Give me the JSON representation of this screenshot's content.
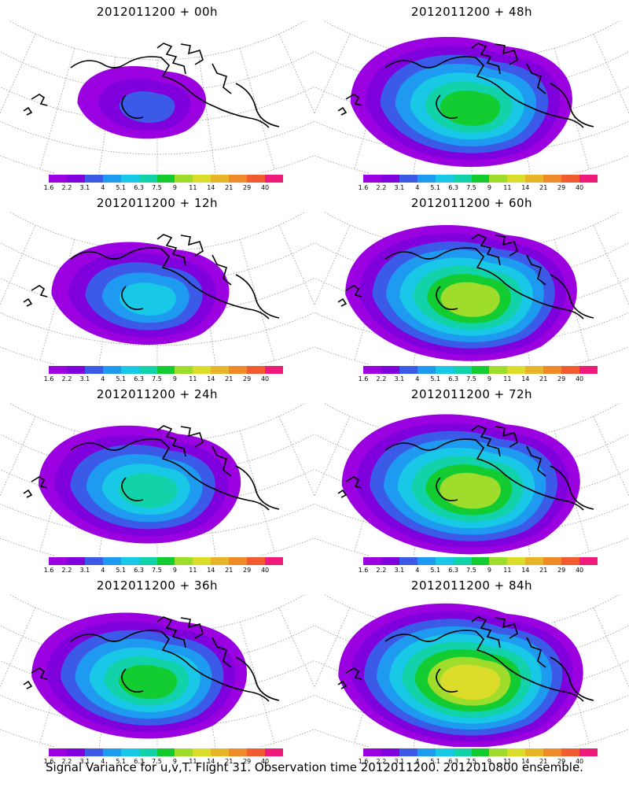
{
  "footer": "Signal Variance for u,v,T. Flight 31. Observation time 2012011200. 2012010800 ensemble.",
  "colorbar": {
    "labels": [
      "1.6",
      "2.2",
      "3.1",
      "4",
      "5.1",
      "6.3",
      "7.5",
      "9",
      "11",
      "14",
      "21",
      "29",
      "40"
    ],
    "colors": [
      "#9b00e0",
      "#7f00dd",
      "#3c5ae8",
      "#1e9bf0",
      "#19c8e6",
      "#12d2aa",
      "#13cc32",
      "#9fdc2b",
      "#dcdc2b",
      "#e8b42a",
      "#ef8a28",
      "#f25a32",
      "#ef1a7c"
    ]
  },
  "panels": [
    {
      "title": "2012011200 + 00h",
      "level": 0.15
    },
    {
      "title": "2012011200 + 48h",
      "level": 0.72
    },
    {
      "title": "2012011200 + 12h",
      "level": 0.45
    },
    {
      "title": "2012011200 + 60h",
      "level": 0.78
    },
    {
      "title": "2012011200 + 24h",
      "level": 0.6
    },
    {
      "title": "2012011200 + 72h",
      "level": 0.82
    },
    {
      "title": "2012011200 + 36h",
      "level": 0.68
    },
    {
      "title": "2012011200 + 84h",
      "level": 0.86
    }
  ]
}
